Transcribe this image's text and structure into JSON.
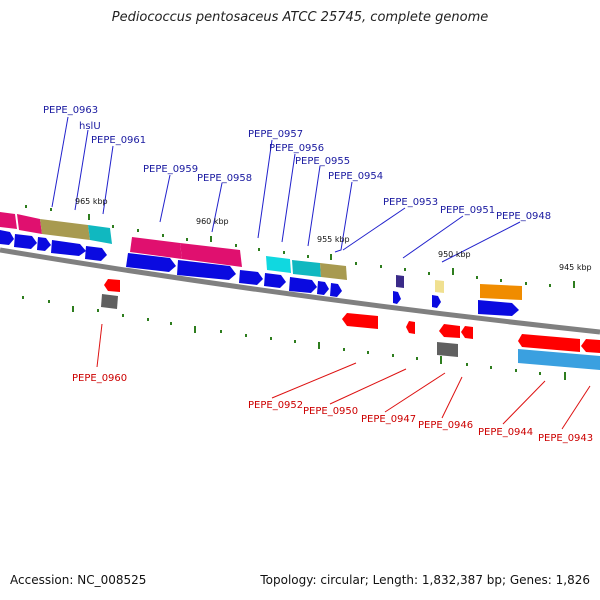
{
  "title": "Pediococcus pentosaceus ATCC 25745, complete genome",
  "footer": {
    "accession": "Accession: NC_008525",
    "summary": "Topology: circular; Length: 1,832,387 bp; Genes: 1,826"
  },
  "colors": {
    "forward_label": "#1a1aa0",
    "reverse_label": "#cc0000",
    "backbone": "#808080",
    "tick": "#2e7d1e"
  },
  "scale_labels": [
    {
      "text": "965 kbp"
    },
    {
      "text": "960 kbp"
    },
    {
      "text": "955 kbp"
    },
    {
      "text": "950 kbp"
    },
    {
      "text": "945 kbp"
    }
  ],
  "forward_labels": [
    {
      "text": "PEPE_0963"
    },
    {
      "text": "hslU"
    },
    {
      "text": "PEPE_0961"
    },
    {
      "text": "PEPE_0959"
    },
    {
      "text": "PEPE_0958"
    },
    {
      "text": "PEPE_0957"
    },
    {
      "text": "PEPE_0956"
    },
    {
      "text": "PEPE_0955"
    },
    {
      "text": "PEPE_0954"
    },
    {
      "text": "PEPE_0953"
    },
    {
      "text": "PEPE_0951"
    },
    {
      "text": "PEPE_0948"
    }
  ],
  "reverse_labels": [
    {
      "text": "PEPE_0960"
    },
    {
      "text": "PEPE_0952"
    },
    {
      "text": "PEPE_0950"
    },
    {
      "text": "PEPE_0947"
    },
    {
      "text": "PEPE_0946"
    },
    {
      "text": "PEPE_0944"
    },
    {
      "text": "PEPE_0943"
    }
  ]
}
